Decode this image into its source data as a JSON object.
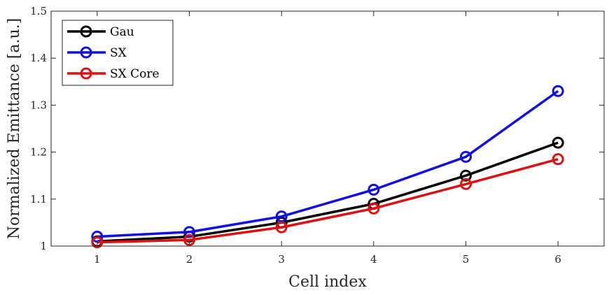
{
  "chart_data": {
    "type": "line",
    "title": "",
    "xlabel": "Cell index",
    "ylabel": "Normalized Emittance [a.u.]",
    "x": [
      1,
      2,
      3,
      4,
      5,
      6
    ],
    "xlim": [
      0.5,
      6.5
    ],
    "ylim": [
      1.0,
      1.5
    ],
    "xticks": [
      "1",
      "2",
      "3",
      "4",
      "5",
      "6"
    ],
    "yticks": [
      "1",
      "1.1",
      "1.2",
      "1.3",
      "1.4",
      "1.5"
    ],
    "legend_position": "top-left",
    "grid": false,
    "series": [
      {
        "name": "Gau",
        "color": "#000000",
        "values": [
          1.01,
          1.02,
          1.05,
          1.09,
          1.15,
          1.22
        ]
      },
      {
        "name": "SX",
        "color": "#1010e0",
        "values": [
          1.02,
          1.03,
          1.063,
          1.12,
          1.19,
          1.33
        ]
      },
      {
        "name": "SX Core",
        "color": "#e01010",
        "values": [
          1.008,
          1.013,
          1.04,
          1.08,
          1.132,
          1.185
        ]
      }
    ]
  }
}
